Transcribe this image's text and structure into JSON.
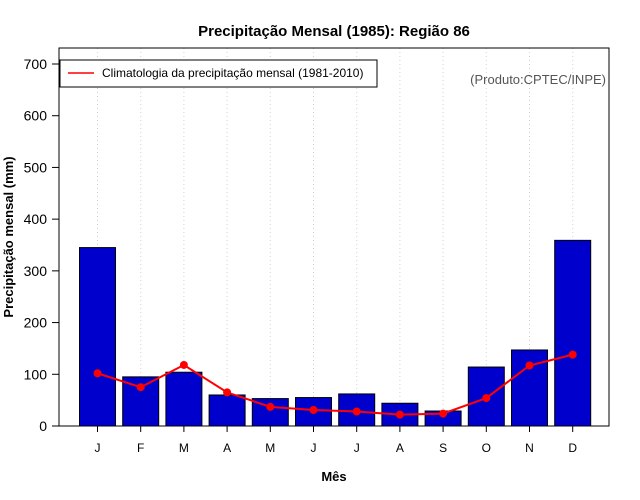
{
  "chart_data": {
    "type": "bar",
    "title": "Precipitação Mensal (1985): Região 86",
    "xlabel": "Mês",
    "ylabel": "Precipitação mensal (mm)",
    "ylim": [
      0,
      700
    ],
    "yticks": [
      0,
      100,
      200,
      300,
      400,
      500,
      600,
      700
    ],
    "categories": [
      "J",
      "F",
      "M",
      "A",
      "M",
      "J",
      "J",
      "A",
      "S",
      "O",
      "N",
      "D"
    ],
    "series": [
      {
        "name": "Precipitação mensal (1985)",
        "type": "bar",
        "color": "#0000CD",
        "values": [
          345,
          95,
          104,
          60,
          53,
          55,
          62,
          44,
          29,
          114,
          147,
          359
        ]
      },
      {
        "name": "Climatologia da precipitação mensal (1981-2010)",
        "type": "line",
        "color": "#FF0000",
        "values": [
          102,
          75,
          118,
          65,
          37,
          31,
          28,
          22,
          24,
          54,
          117,
          138
        ]
      }
    ],
    "grid": "vertical dotted",
    "legend": {
      "position": "top-left",
      "entries": [
        "Climatologia da precipitação mensal (1981-2010)"
      ]
    },
    "annotation": "(Produto:CPTEC/INPE)"
  }
}
